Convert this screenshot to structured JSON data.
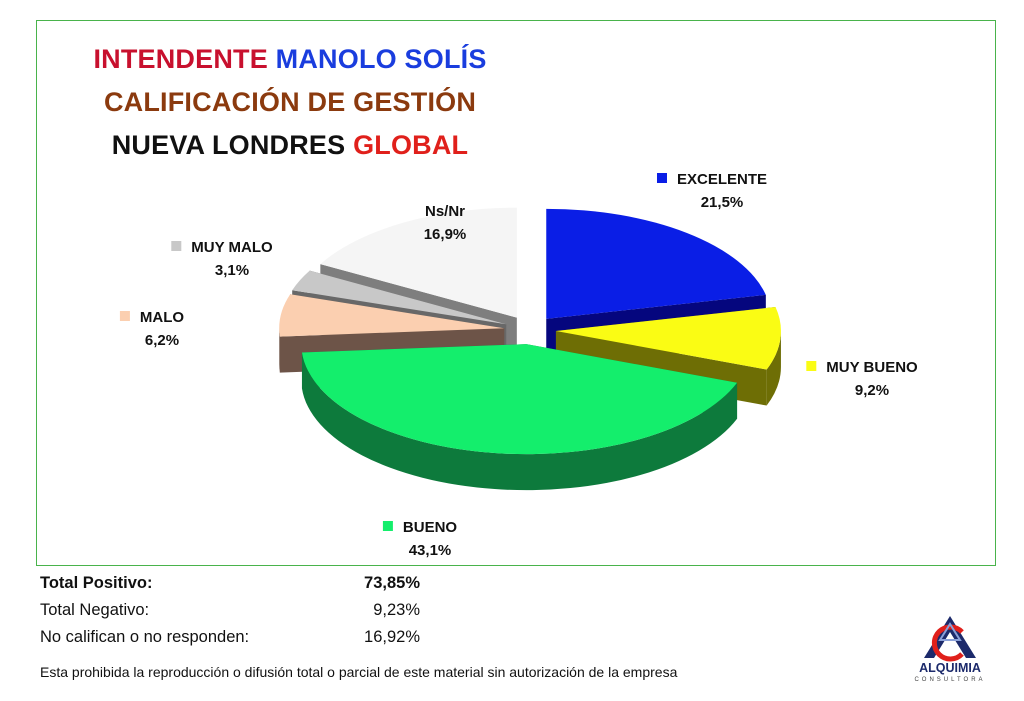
{
  "title": {
    "line1": [
      {
        "text": "INTENDENTE ",
        "color": "#c8102e"
      },
      {
        "text": "MANOLO SOLÍS",
        "color": "#1a3dde"
      }
    ],
    "line2": [
      {
        "text": "CALIFICACIÓN DE GESTIÓN",
        "color": "#8b3a0e"
      }
    ],
    "line3": [
      {
        "text": "NUEVA LONDRES ",
        "color": "#111111"
      },
      {
        "text": "GLOBAL",
        "color": "#e0201b"
      }
    ]
  },
  "chart_data": {
    "type": "pie",
    "style": "3d-exploded",
    "legend_placement": "labels-beside-slices",
    "categories": [
      "EXCELENTE",
      "MUY BUENO",
      "BUENO",
      "MALO",
      "MUY MALO",
      "Ns/Nr"
    ],
    "values": [
      21.5,
      9.2,
      43.1,
      6.2,
      3.1,
      16.9
    ],
    "value_labels": [
      "21,5%",
      "9,2%",
      "43,1%",
      "6,2%",
      "3,1%",
      "16,9%"
    ],
    "colors": [
      "#0a1ee6",
      "#fafc14",
      "#14ee6c",
      "#fbcfb0",
      "#c8c8c8",
      "#f5f5f5"
    ],
    "side_colors": [
      "#05067e",
      "#6e6e05",
      "#0d7a3c",
      "#6d5448",
      "#686868",
      "#7e7e7e"
    ]
  },
  "summary": [
    {
      "label": "Total Positivo:",
      "value": "73,85%",
      "bold": true
    },
    {
      "label": "Total Negativo:",
      "value": "9,23%",
      "bold": false
    },
    {
      "label": "No califican o no responden:",
      "value": "16,92%",
      "bold": false
    }
  ],
  "disclaimer": "Esta prohibida la reproducción o difusión total o parcial de este material sin autorización de la empresa",
  "logo": {
    "name": "ALQUIMIA",
    "subtitle": "CONSULTORA",
    "primary_color": "#1c2a6b",
    "accent_color": "#e0201b"
  }
}
